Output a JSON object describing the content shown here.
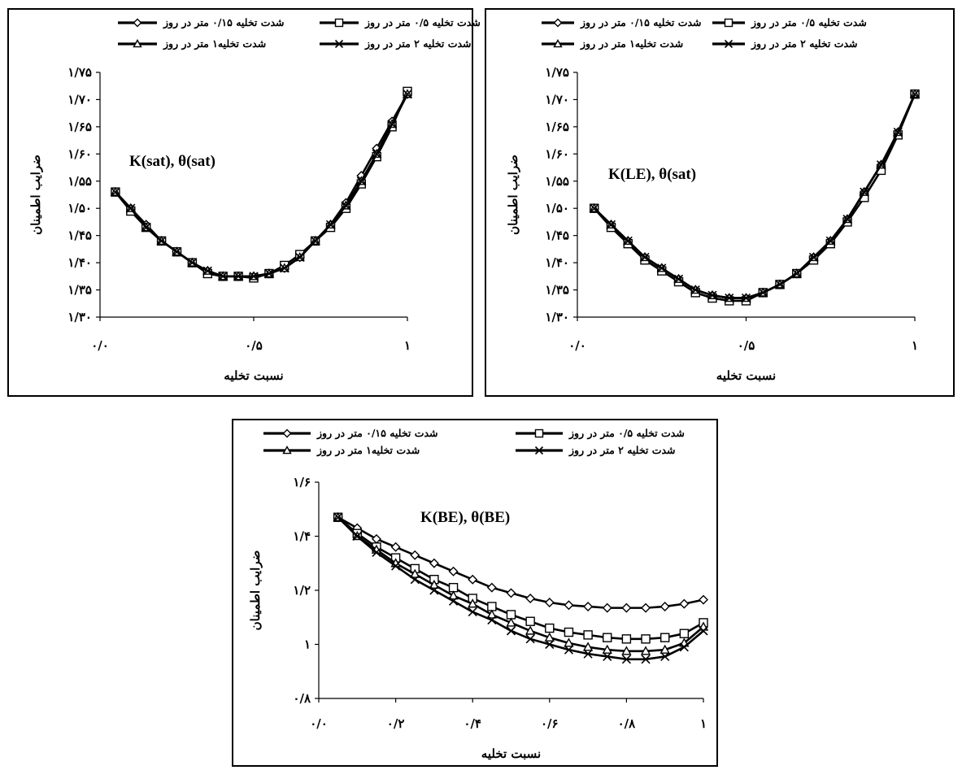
{
  "legend_labels": [
    "شدت تخلیه ۰/۱۵ متر در روز",
    "شدت تخلیه ۰/۵ متر در روز",
    "شدت تخلیه۱ متر در روز",
    "شدت تخلیه ۲ متر در روز"
  ],
  "chart_data": [
    {
      "type": "line",
      "annotation": "K(sat), θ(sat)",
      "xlabel": "نسبت تخلیه",
      "ylabel": "ضرایب اطمینان",
      "xlim": [
        0,
        1
      ],
      "ylim": [
        1.3,
        1.75
      ],
      "x_ticks": [
        0,
        0.5,
        1
      ],
      "x_tick_labels": [
        "۰/۰",
        "۰/۵",
        "۱"
      ],
      "y_ticks": [
        1.3,
        1.35,
        1.4,
        1.45,
        1.5,
        1.55,
        1.6,
        1.65,
        1.7,
        1.75
      ],
      "y_tick_labels": [
        "۱/۳۰",
        "۱/۳۵",
        "۱/۴۰",
        "۱/۴۵",
        "۱/۵۰",
        "۱/۵۵",
        "۱/۶۰",
        "۱/۶۵",
        "۱/۷۰",
        "۱/۷۵"
      ],
      "x": [
        0.05,
        0.1,
        0.15,
        0.2,
        0.25,
        0.3,
        0.35,
        0.4,
        0.45,
        0.5,
        0.55,
        0.6,
        0.65,
        0.7,
        0.75,
        0.8,
        0.85,
        0.9,
        0.95,
        1.0
      ],
      "series": [
        {
          "name": "شدت تخلیه ۰/۱۵ متر در روز",
          "marker": "diamond",
          "values": [
            1.53,
            1.5,
            1.47,
            1.44,
            1.42,
            1.4,
            1.385,
            1.375,
            1.375,
            1.375,
            1.38,
            1.39,
            1.41,
            1.44,
            1.47,
            1.51,
            1.56,
            1.61,
            1.66,
            1.71
          ]
        },
        {
          "name": "شدت تخلیه ۰/۵ متر در روز",
          "marker": "square",
          "values": [
            1.53,
            1.495,
            1.465,
            1.44,
            1.42,
            1.4,
            1.38,
            1.375,
            1.375,
            1.372,
            1.38,
            1.395,
            1.415,
            1.44,
            1.465,
            1.5,
            1.545,
            1.595,
            1.65,
            1.715
          ]
        },
        {
          "name": "شدت تخلیه۱ متر در روز",
          "marker": "triangle",
          "values": [
            1.53,
            1.5,
            1.465,
            1.44,
            1.42,
            1.4,
            1.385,
            1.375,
            1.375,
            1.375,
            1.38,
            1.39,
            1.41,
            1.44,
            1.47,
            1.505,
            1.55,
            1.6,
            1.655,
            1.71
          ]
        },
        {
          "name": "شدت تخلیه ۲ متر در روز",
          "marker": "x",
          "values": [
            1.53,
            1.5,
            1.465,
            1.44,
            1.42,
            1.4,
            1.385,
            1.375,
            1.375,
            1.375,
            1.38,
            1.39,
            1.41,
            1.44,
            1.47,
            1.505,
            1.55,
            1.6,
            1.655,
            1.71
          ]
        }
      ]
    },
    {
      "type": "line",
      "annotation": "K(LE), θ(sat)",
      "xlabel": "نسبت تخلیه",
      "ylabel": "ضرایب اطمینان",
      "xlim": [
        0,
        1
      ],
      "ylim": [
        1.3,
        1.75
      ],
      "x_ticks": [
        0,
        0.5,
        1
      ],
      "x_tick_labels": [
        "۰/۰",
        "۰/۵",
        "۱"
      ],
      "y_ticks": [
        1.3,
        1.35,
        1.4,
        1.45,
        1.5,
        1.55,
        1.6,
        1.65,
        1.7,
        1.75
      ],
      "y_tick_labels": [
        "۱/۳۰",
        "۱/۳۵",
        "۱/۴۰",
        "۱/۴۵",
        "۱/۵۰",
        "۱/۵۵",
        "۱/۶۰",
        "۱/۶۵",
        "۱/۷۰",
        "۱/۷۵"
      ],
      "x": [
        0.05,
        0.1,
        0.15,
        0.2,
        0.25,
        0.3,
        0.35,
        0.4,
        0.45,
        0.5,
        0.55,
        0.6,
        0.65,
        0.7,
        0.75,
        0.8,
        0.85,
        0.9,
        0.95,
        1.0
      ],
      "series": [
        {
          "name": "شدت تخلیه ۰/۱۵ متر در روز",
          "marker": "diamond",
          "values": [
            1.5,
            1.47,
            1.44,
            1.41,
            1.39,
            1.37,
            1.35,
            1.34,
            1.335,
            1.335,
            1.345,
            1.36,
            1.38,
            1.41,
            1.44,
            1.48,
            1.53,
            1.58,
            1.64,
            1.71
          ]
        },
        {
          "name": "شدت تخلیه ۰/۵ متر در روز",
          "marker": "square",
          "values": [
            1.5,
            1.465,
            1.435,
            1.405,
            1.385,
            1.365,
            1.345,
            1.335,
            1.33,
            1.33,
            1.345,
            1.36,
            1.38,
            1.405,
            1.435,
            1.475,
            1.52,
            1.57,
            1.635,
            1.71
          ]
        },
        {
          "name": "شدت تخلیه۱ متر در روز",
          "marker": "triangle",
          "values": [
            1.5,
            1.47,
            1.44,
            1.41,
            1.39,
            1.37,
            1.35,
            1.34,
            1.335,
            1.335,
            1.345,
            1.36,
            1.38,
            1.41,
            1.44,
            1.48,
            1.53,
            1.58,
            1.64,
            1.71
          ]
        },
        {
          "name": "شدت تخلیه ۲ متر در روز",
          "marker": "x",
          "values": [
            1.5,
            1.47,
            1.44,
            1.41,
            1.39,
            1.37,
            1.35,
            1.34,
            1.335,
            1.335,
            1.345,
            1.36,
            1.38,
            1.41,
            1.44,
            1.48,
            1.53,
            1.58,
            1.64,
            1.71
          ]
        }
      ]
    },
    {
      "type": "line",
      "annotation": "K(BE), θ(BE)",
      "xlabel": "نسبت تخلیه",
      "ylabel": "ضرایب اطمینان",
      "xlim": [
        0,
        1
      ],
      "ylim": [
        0.8,
        1.6
      ],
      "x_ticks": [
        0,
        0.2,
        0.4,
        0.6,
        0.8,
        1
      ],
      "x_tick_labels": [
        "۰/۰",
        "۰/۲",
        "۰/۴",
        "۰/۶",
        "۰/۸",
        "۱"
      ],
      "y_ticks": [
        0.8,
        1.0,
        1.2,
        1.4,
        1.6
      ],
      "y_tick_labels": [
        "۰/۸",
        "۱",
        "۱/۲",
        "۱/۴",
        "۱/۶"
      ],
      "x": [
        0.05,
        0.1,
        0.15,
        0.2,
        0.25,
        0.3,
        0.35,
        0.4,
        0.45,
        0.5,
        0.55,
        0.6,
        0.65,
        0.7,
        0.75,
        0.8,
        0.85,
        0.9,
        0.95,
        1.0
      ],
      "series": [
        {
          "name": "شدت تخلیه ۰/۱۵ متر در روز",
          "marker": "diamond",
          "values": [
            1.47,
            1.43,
            1.39,
            1.36,
            1.33,
            1.3,
            1.27,
            1.24,
            1.21,
            1.19,
            1.17,
            1.155,
            1.145,
            1.14,
            1.135,
            1.135,
            1.135,
            1.14,
            1.15,
            1.165
          ]
        },
        {
          "name": "شدت تخلیه ۰/۵ متر در روز",
          "marker": "square",
          "values": [
            1.47,
            1.41,
            1.36,
            1.32,
            1.28,
            1.24,
            1.21,
            1.17,
            1.14,
            1.11,
            1.085,
            1.06,
            1.045,
            1.035,
            1.025,
            1.02,
            1.02,
            1.025,
            1.04,
            1.08
          ]
        },
        {
          "name": "شدت تخلیه۱ متر در روز",
          "marker": "triangle",
          "values": [
            1.47,
            1.4,
            1.35,
            1.3,
            1.26,
            1.22,
            1.18,
            1.15,
            1.11,
            1.08,
            1.05,
            1.025,
            1.005,
            0.99,
            0.98,
            0.975,
            0.975,
            0.98,
            1.005,
            1.065
          ]
        },
        {
          "name": "شدت تخلیه ۲ متر در روز",
          "marker": "x",
          "values": [
            1.47,
            1.4,
            1.34,
            1.29,
            1.24,
            1.2,
            1.16,
            1.12,
            1.09,
            1.05,
            1.02,
            1.0,
            0.98,
            0.965,
            0.955,
            0.945,
            0.945,
            0.955,
            0.99,
            1.05
          ]
        }
      ]
    }
  ]
}
